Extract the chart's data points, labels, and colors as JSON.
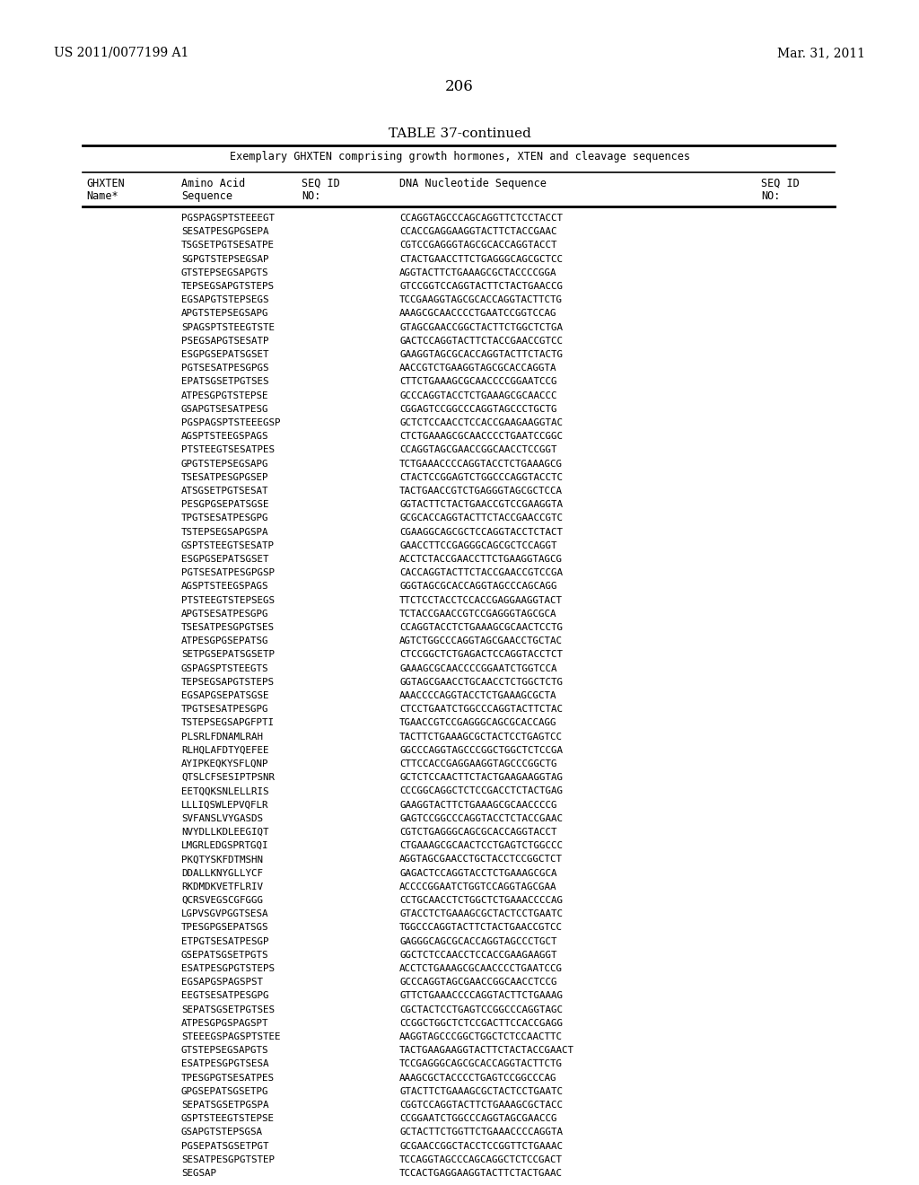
{
  "header_left": "US 2011/0077199 A1",
  "header_right": "Mar. 31, 2011",
  "page_number": "206",
  "table_title": "TABLE 37-continued",
  "table_subtitle": "Exemplary GHXTEN comprising growth hormones, XTEN and cleavage sequences",
  "rows": [
    [
      "PGSPAGSPTSTEEEGT",
      "CCAGGTAGCCCAGCAGGTTCTCCTACCT"
    ],
    [
      "SESATPESGPGSEPA",
      "CCACCGAGGAAGGTACTTCTACCGAAC"
    ],
    [
      "TSGSETPGTSESATPE",
      "CGTCCGAGGGTAGCGCACCAGGTACCT"
    ],
    [
      "SGPGTSTEPSEGSAP",
      "CTACTGAACCTTCTGAGGGCAGCGCTCC"
    ],
    [
      "GTSTEPSEGSAPGTS",
      "AGGTACTTCTGAAAGCGCTACCCCGGA"
    ],
    [
      "TEPSEGSAPGTSTEPS",
      "GTCCGGTCCAGGTACTTCTACTGAACCG"
    ],
    [
      "EGSAPGTSTEPSEGS",
      "TCCGAAGGTAGCGCACCAGGTACTTCTG"
    ],
    [
      "APGTSTEPSEGSAPG",
      "AAAGCGCAACCCCTGAATCCGGTCCAG"
    ],
    [
      "SPAGSPTSTEEGTSTE",
      "GTAGCGAACCGGCTACTTCTGGCTCTGA"
    ],
    [
      "PSEGSAPGTSESATP",
      "GACTCCAGGTACTTCTACCGAACCGTCC"
    ],
    [
      "ESGPGSEPATSGSET",
      "GAAGGTAGCGCACCAGGTACTTCTACTG"
    ],
    [
      "PGTSESATPESGPGS",
      "AACCGTCTGAAGGTAGCGCACCAGGTA"
    ],
    [
      "EPATSGSETPGTSES",
      "CTTCTGAAAGCGCAACCCCGGAATCCG"
    ],
    [
      "ATPESGPGTSTEPSE",
      "GCCCAGGTACCTCTGAAAGCGCAACCC"
    ],
    [
      "GSAPGTSESATPESG",
      "CGGAGTCCGGCCCAGGTAGCCCTGCTG"
    ],
    [
      "PGSPAGSPTSTEEEGSP",
      "GCTCTCCAACCTCCACCGAAGAAGGTAC"
    ],
    [
      "AGSPTSTEEGSPAGS",
      "CTCTGAAAGCGCAACCCCTGAATCCGGC"
    ],
    [
      "PTSTEEGTSESATPES",
      "CCAGGTAGCGAACCGGCAACCTCCGGT"
    ],
    [
      "GPGTSTEPSEGSAPG",
      "TCTGAAACCCCAGGTACCTCTGAAAGCG"
    ],
    [
      "TSESATPESGPGSEP",
      "CTACTCCGGAGTCTGGCCCAGGTACCTC"
    ],
    [
      "ATSGSETPGTSESAT",
      "TACTGAACCGTCTGAGGGTAGCGCTCCA"
    ],
    [
      "PESGPGSEPATSGSE",
      "GGTACTTCTACTGAACCGTCCGAAGGTA"
    ],
    [
      "TPGTSESATPESGPG",
      "GCGCACCAGGTACTTCTACCGAACCGTC"
    ],
    [
      "TSTEPSEGSAPGSPA",
      "CGAAGGCAGCGCTCCAGGTACCTCTACT"
    ],
    [
      "GSPTSTEEGTSESATP",
      "GAACCTTCCGAGGGCAGCGCTCCAGGT"
    ],
    [
      "ESGPGSEPATSGSET",
      "ACCTCTACCGAACCTTCTGAAGGTAGCG"
    ],
    [
      "PGTSESATPESGPGSP",
      "CACCAGGTACTTCTACCGAACCGTCCGA"
    ],
    [
      "AGSPTSTEEGSPAGS",
      "GGGTAGCGCACCAGGTAGCCCAGCAGG"
    ],
    [
      "PTSTEEGTSTEPSEGS",
      "TTCTCCTACCTCCACCGAGGAAGGTACT"
    ],
    [
      "APGTSESATPESGPG",
      "TCTACCGAACCGTCCGAGGGTAGCGCA"
    ],
    [
      "TSESATPESGPGTSES",
      "CCAGGTACCTCTGAAAGCGCAACTCCTG"
    ],
    [
      "ATPESGPGSEPATSG",
      "AGTCTGGCCCAGGTAGCGAACCTGCTAC"
    ],
    [
      "SETPGSEPATSGSETP",
      "CTCCGGCTCTGAGACTCCAGGTACCTCT"
    ],
    [
      "GSPAGSPTSTEEGTS",
      "GAAAGCGCAACCCCGGAATCTGGTCCA"
    ],
    [
      "TEPSEGSAPGTSTEPS",
      "GGTAGCGAACCTGCAACCTCTGGCTCTG"
    ],
    [
      "EGSAPGSEPATSGSE",
      "AAACCCCAGGTACCTCTGAAAGCGCTA"
    ],
    [
      "TPGTSESATPESGPG",
      "CTCCTGAATCTGGCCCAGGTACTTCTAC"
    ],
    [
      "TSTEPSEGSAPGFPTI",
      "TGAACCGTCCGAGGGCAGCGCACCAGG"
    ],
    [
      "PLSRLFDNAMLRAH",
      "TACTTCTGAAAGCGCTACTCCTGAGTCC"
    ],
    [
      "RLHQLAFDTYQEFEE",
      "GGCCCAGGTAGCCCGGCTGGCTCTCCGA"
    ],
    [
      "AYIPKEQKYSFLQNP",
      "CTTCCACCGAGGAAGGTAGCCCGGCTG"
    ],
    [
      "QTSLCFSESIPTPSNR",
      "GCTCTCCAACTTCTACTGAAGAAGGTAG"
    ],
    [
      "EETQQKSNLELLRIS",
      "CCCGGCAGGCTCTCCGACCTCTACTGAG"
    ],
    [
      "LLLIQSWLEPVQFLR",
      "GAAGGTACTTCTGAAAGCGCAACCCCG"
    ],
    [
      "SVFANSLVYGASDS",
      "GAGTCCGGCCCAGGTACCTCTACCGAAC"
    ],
    [
      "NVYDLLKDLEEGIQT",
      "CGTCTGAGGGCAGCGCACCAGGTACCT"
    ],
    [
      "LMGRLEDGSPRTGQI",
      "CTGAAAGCGCAACTCCTGAGTCTGGCCC"
    ],
    [
      "PKQTYSKFDTMSHN",
      "AGGTAGCGAACCTGCTACCTCCGGCTCT"
    ],
    [
      "DDALLKNYGLLYCF",
      "GAGACTCCAGGTACCTCTGAAAGCGCA"
    ],
    [
      "RKDMDKVETFLRIV",
      "ACCCCGGAATCTGGTCCAGGTAGCGAA"
    ],
    [
      "QCRSVEGSCGFGGG",
      "CCTGCAACCTCTGGCTCTGAAACCCCAG"
    ],
    [
      "LGPVSGVPGGTSESA",
      "GTACCTCTGAAAGCGCTACTCCTGAATC"
    ],
    [
      "TPESGPGSEPATSGS",
      "TGGCCCAGGTACTTCTACTGAACCGTCC"
    ],
    [
      "ETPGTSESATPESGP",
      "GAGGGCAGCGCACCAGGTAGCCCTGCT"
    ],
    [
      "GSEPATSGSETPGTS",
      "GGCTCTCCAACCTCCACCGAAGAAGGT"
    ],
    [
      "ESATPESGPGTSTEPS",
      "ACCTCTGAAAGCGCAACCCCTGAATCCG"
    ],
    [
      "EGSAPGSPAGSPST",
      "GCCCAGGTAGCGAACCGGCAACCTCCG"
    ],
    [
      "EEGTSESATPESGPG",
      "GTTCTGAAACCCCAGGTACTTCTGAAAG"
    ],
    [
      "SEPATSGSETPGTSES",
      "CGCTACTCCTGAGTCCGGCCCAGGTAGC"
    ],
    [
      "ATPESGPGSPAGSPT",
      "CCGGCTGGCTCTCCGACTTCCACCGAGG"
    ],
    [
      "STEEEGSPAGSPTSTEE",
      "AAGGTAGCCCGGCTGGCTCTCCAACTTC"
    ],
    [
      "GTSTEPSEGSAPGTS",
      "TACTGAAGAAGGTACTTCTACTACCGAACT"
    ],
    [
      "ESATPESGPGTSESA",
      "TCCGAGGGCAGCGCACCAGGTACTTCTG"
    ],
    [
      "TPESGPGTSESATPES",
      "AAAGCGCTACCCCTGAGTCCGGCCCAG"
    ],
    [
      "GPGSEPATSGSETPG",
      "GTACTTCTGAAAGCGCTACTCCTGAATC"
    ],
    [
      "SEPATSGSETPGSPA",
      "CGGTCCAGGTACTTCTGAAAGCGCTACC"
    ],
    [
      "GSPTSTEEGTSTEPSE",
      "CCGGAATCTGGCCCAGGTAGCGAACCG"
    ],
    [
      "GSAPGTSTEPSGSA",
      "GCTACTTCTGGTTCTGAAACCCCAGGTA"
    ],
    [
      "PGSEPATSGSETPGT",
      "GCGAACCGGCTACCTCCGGTTCTGAAAC"
    ],
    [
      "SESATPESGPGTSTEP",
      "TCCAGGTAGCCCAGCAGGCTCTCCGACT"
    ],
    [
      "SEGSAP",
      "TCCACTGAGGAAGGTACTTCTACTGAAC"
    ]
  ],
  "bg_color": "#ffffff",
  "text_color": "#000000"
}
